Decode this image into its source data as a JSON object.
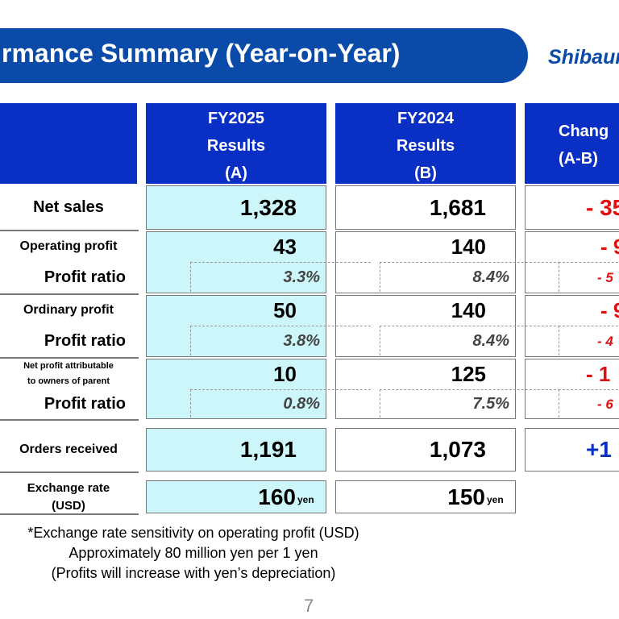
{
  "header": {
    "title": "rmance Summary (Year-on-Year)",
    "logo": "Shibaur"
  },
  "table": {
    "headers": [
      [
        "FY2025",
        "Results",
        "(A)"
      ],
      [
        "FY2024",
        "Results",
        "(B)"
      ],
      [
        "Chang",
        "(A-B)"
      ]
    ],
    "rows": [
      {
        "label": [
          "Net sales"
        ],
        "a": "1,328",
        "b": "1,681",
        "c": "- 35"
      },
      {
        "label": [
          "Operating profit"
        ],
        "a": "43",
        "b": "140",
        "c": "- 9"
      },
      {
        "label": [
          "Profit ratio"
        ],
        "a": "3.3%",
        "b": "8.4%",
        "c": "- 5"
      },
      {
        "label": [
          "Ordinary profit"
        ],
        "a": "50",
        "b": "140",
        "c": "- 9"
      },
      {
        "label": [
          "Profit ratio"
        ],
        "a": "3.8%",
        "b": "8.4%",
        "c": "- 4"
      },
      {
        "label": [
          "Net profit attributable",
          "to owners of parent"
        ],
        "a": "10",
        "b": "125",
        "c": "- 1"
      },
      {
        "label": [
          "Profit ratio"
        ],
        "a": "0.8%",
        "b": "7.5%",
        "c": "- 6"
      },
      {
        "label": [
          "Orders received"
        ],
        "a": "1,191",
        "b": "1,073",
        "c": "+1"
      },
      {
        "label": [
          "Exchange rate",
          "(USD)"
        ],
        "a": "160",
        "a_unit": "yen",
        "b": "150",
        "b_unit": "yen"
      }
    ]
  },
  "notes": [
    "*Exchange rate sensitivity on operating profit (USD)",
    "Approximately 80 million yen per 1 yen",
    "(Profits will increase with yen’s depreciation)"
  ],
  "page": "7"
}
